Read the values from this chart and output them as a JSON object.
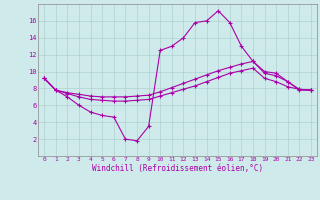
{
  "background_color": "#ceeaea",
  "line_color": "#aa00aa",
  "grid_color": "#aacccc",
  "xlabel": "Windchill (Refroidissement éolien,°C)",
  "xlabel_color": "#aa00aa",
  "ylabel_ticks": [
    2,
    4,
    6,
    8,
    10,
    12,
    14,
    16
  ],
  "xlim": [
    -0.5,
    23.5
  ],
  "ylim": [
    0,
    18
  ],
  "s1y": [
    9.2,
    7.8,
    7.0,
    6.0,
    5.2,
    4.8,
    4.6,
    2.0,
    1.8,
    3.5,
    12.5,
    13.0,
    14.0,
    15.8,
    16.0,
    17.2,
    15.8,
    13.0,
    11.2,
    9.8,
    9.5,
    8.8,
    7.8,
    7.8
  ],
  "s2y": [
    9.2,
    7.8,
    7.5,
    7.3,
    7.1,
    7.0,
    7.0,
    7.0,
    7.1,
    7.2,
    7.6,
    8.1,
    8.6,
    9.1,
    9.6,
    10.1,
    10.5,
    10.9,
    11.2,
    10.0,
    9.8,
    8.8,
    7.9,
    7.8
  ],
  "s3y": [
    9.2,
    7.8,
    7.4,
    7.0,
    6.7,
    6.6,
    6.5,
    6.5,
    6.6,
    6.7,
    7.1,
    7.5,
    7.9,
    8.3,
    8.8,
    9.3,
    9.8,
    10.1,
    10.4,
    9.2,
    8.8,
    8.2,
    7.9,
    7.8
  ]
}
